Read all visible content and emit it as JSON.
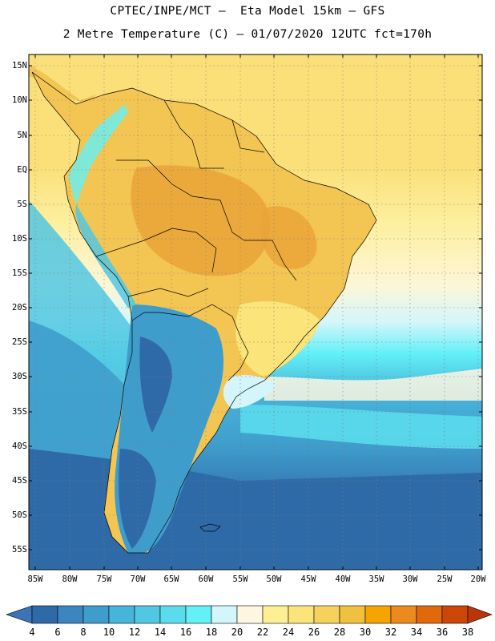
{
  "header": {
    "title_line1": "CPTEC/INPE/MCT –  Eta Model 15km – GFS",
    "title_line2": "2 Metre Temperature (C) – 01/07/2020 12UTC fct=170h"
  },
  "map": {
    "region": "South America",
    "lat_labels": [
      "15N",
      "10N",
      "5N",
      "EQ",
      "5S",
      "10S",
      "15S",
      "20S",
      "25S",
      "30S",
      "35S",
      "40S",
      "45S",
      "50S",
      "55S"
    ],
    "lon_labels": [
      "85W",
      "80W",
      "75W",
      "70W",
      "65W",
      "60W",
      "55W",
      "50W",
      "45W",
      "40W",
      "35W",
      "30W",
      "25W",
      "20W"
    ],
    "grid": "dotted"
  },
  "colorbar": {
    "labels": [
      "4",
      "6",
      "8",
      "10",
      "12",
      "14",
      "16",
      "18",
      "20",
      "22",
      "24",
      "26",
      "28",
      "30",
      "32",
      "34",
      "36",
      "38"
    ],
    "colors": [
      "#3b73b6",
      "#2f6aa8",
      "#3c86c0",
      "#3f9dcc",
      "#47b4da",
      "#52c7e2",
      "#5bdcec",
      "#63f0f7",
      "#d4f6fb",
      "#fff6e2",
      "#fdef94",
      "#fbe479",
      "#f5d25c",
      "#f0c040",
      "#f5a400",
      "#ec8a1d",
      "#e06a0b",
      "#cc4706",
      "#b8360a"
    ]
  }
}
